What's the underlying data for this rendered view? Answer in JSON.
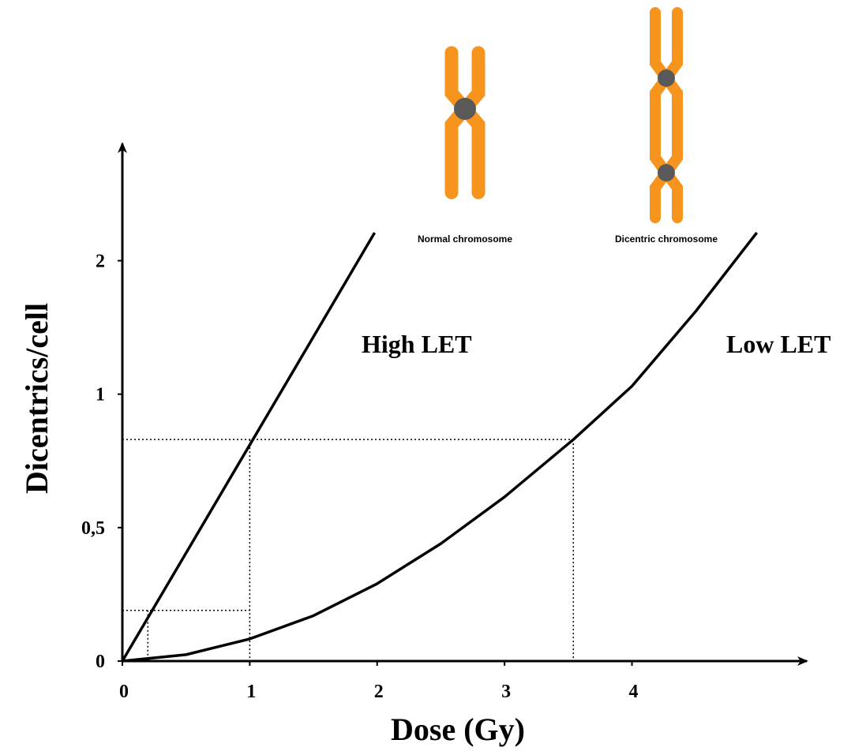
{
  "chart_data": {
    "type": "line",
    "x_label": "Dose (Gy)",
    "y_label": "Dicentrics/cell",
    "xlim": [
      0,
      5.36
    ],
    "ylim": [
      0,
      2.86
    ],
    "xticks": [
      0,
      1,
      2,
      3,
      4
    ],
    "yticks": [
      0,
      {
        "value": 0.5,
        "label": "0,5"
      },
      1,
      2
    ],
    "color": "#000000",
    "series": [
      {
        "name": "High LET",
        "x": [
          0,
          0.5,
          1,
          1.5,
          1.98
        ],
        "values": [
          0,
          0.405,
          0.81,
          1.43,
          2.21
        ]
      },
      {
        "name": "Low LET",
        "x": [
          0,
          0.5,
          1,
          1.5,
          2,
          2.5,
          3,
          3.54,
          4,
          4.5,
          4.98
        ],
        "values": [
          0,
          0.024,
          0.083,
          0.17,
          0.29,
          0.44,
          0.615,
          0.83,
          1.06,
          1.62,
          2.21
        ]
      }
    ],
    "reference_lines": [
      {
        "y": 0.83,
        "x_end": 3.54,
        "x_drops": [
          1,
          3.54
        ]
      },
      {
        "y": 0.19,
        "x_end": 1,
        "x_drops": [
          0.2
        ]
      }
    ]
  },
  "illustration": {
    "normal_label": "Normal chromosome",
    "dicentric_label": "Dicentric chromosome"
  }
}
